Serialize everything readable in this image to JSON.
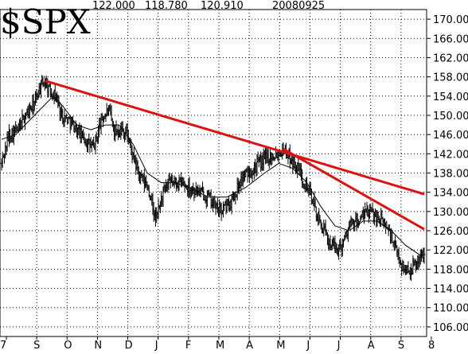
{
  "chart_data": {
    "type": "bar",
    "subtype": "ohlc",
    "symbol": "$SPX",
    "header": {
      "values": [
        "122.000",
        "118.780",
        "120.910"
      ],
      "date": "20080925"
    },
    "y_ticks": [
      "170.000",
      "166.000",
      "162.000",
      "158.000",
      "154.000",
      "150.000",
      "146.000",
      "142.000",
      "138.000",
      "134.000",
      "130.000",
      "126.000",
      "122.000",
      "118.000",
      "114.000",
      "110.000",
      "106.000"
    ],
    "y_range": [
      104,
      172
    ],
    "x_month_labels": [
      "7",
      "S",
      "O",
      "N",
      "D",
      "J",
      "F",
      "M",
      "A",
      "M",
      "J",
      "J",
      "A",
      "S",
      "8"
    ],
    "grid": true,
    "price_keypoints": [
      [
        0,
        140
      ],
      [
        8,
        146
      ],
      [
        18,
        147
      ],
      [
        25,
        150
      ],
      [
        34,
        152
      ],
      [
        41,
        156
      ],
      [
        46,
        157
      ],
      [
        52,
        155
      ],
      [
        58,
        154
      ],
      [
        64,
        150
      ],
      [
        72,
        149
      ],
      [
        84,
        146
      ],
      [
        98,
        143
      ],
      [
        106,
        149
      ],
      [
        114,
        151
      ],
      [
        120,
        147
      ],
      [
        128,
        147
      ],
      [
        134,
        146
      ],
      [
        140,
        141
      ],
      [
        148,
        137
      ],
      [
        156,
        135
      ],
      [
        164,
        128
      ],
      [
        172,
        134
      ],
      [
        180,
        136
      ],
      [
        190,
        136
      ],
      [
        200,
        135
      ],
      [
        210,
        134
      ],
      [
        220,
        133
      ],
      [
        232,
        130
      ],
      [
        244,
        132
      ],
      [
        256,
        137
      ],
      [
        268,
        139
      ],
      [
        280,
        141
      ],
      [
        292,
        142
      ],
      [
        300,
        143
      ],
      [
        308,
        141
      ],
      [
        318,
        138
      ],
      [
        328,
        134
      ],
      [
        338,
        128
      ],
      [
        348,
        124
      ],
      [
        356,
        122
      ],
      [
        362,
        123
      ],
      [
        370,
        127
      ],
      [
        380,
        128
      ],
      [
        390,
        130
      ],
      [
        400,
        129
      ],
      [
        410,
        127
      ],
      [
        420,
        122
      ],
      [
        428,
        118
      ],
      [
        436,
        118
      ],
      [
        444,
        120
      ],
      [
        450,
        121
      ]
    ],
    "moving_average": [
      [
        0,
        145
      ],
      [
        15,
        146
      ],
      [
        30,
        149
      ],
      [
        45,
        152
      ],
      [
        55,
        154
      ],
      [
        65,
        152
      ],
      [
        80,
        148
      ],
      [
        95,
        147
      ],
      [
        110,
        148
      ],
      [
        125,
        148
      ],
      [
        140,
        144
      ],
      [
        155,
        138
      ],
      [
        170,
        136
      ],
      [
        185,
        136
      ],
      [
        200,
        135
      ],
      [
        220,
        133
      ],
      [
        240,
        133
      ],
      [
        260,
        135
      ],
      [
        280,
        138
      ],
      [
        295,
        140
      ],
      [
        310,
        139
      ],
      [
        325,
        136
      ],
      [
        340,
        131
      ],
      [
        355,
        127
      ],
      [
        370,
        126
      ],
      [
        385,
        128
      ],
      [
        400,
        128
      ],
      [
        415,
        126
      ],
      [
        430,
        123
      ],
      [
        445,
        121
      ],
      [
        450,
        120
      ]
    ],
    "trendlines": [
      {
        "from": [
          46,
          157.2
        ],
        "to": [
          450,
          133.6
        ]
      },
      {
        "from": [
          300,
          143.0
        ],
        "to": [
          450,
          126.3
        ]
      }
    ]
  }
}
